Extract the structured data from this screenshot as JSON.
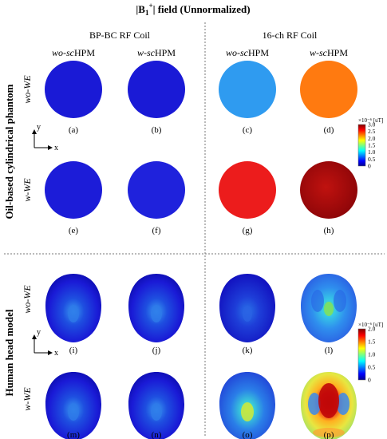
{
  "title": "|B",
  "title_sub": "1",
  "title_sup": "+",
  "title_rest": "| field (Unnormalized)",
  "columns": {
    "group_left": "BP-BC RF Coil",
    "group_right": "16-ch RF Coil",
    "left_wo": {
      "prefix": "wo-",
      "italic": "sc",
      "suffix": "HPM"
    },
    "left_w": {
      "prefix": "w-",
      "italic": "sc",
      "suffix": "HPM"
    },
    "right_wo": {
      "prefix": "wo-",
      "italic": "sc",
      "suffix": "HPM"
    },
    "right_w": {
      "prefix": "w-",
      "italic": "sc",
      "suffix": "HPM"
    }
  },
  "sections": {
    "top": "Oil-based cylindrical phantom",
    "bottom": "Human head model"
  },
  "rows": {
    "top_wo": "wo-WE",
    "top_w": "w-WE",
    "bottom_wo": "wo-WE",
    "bottom_w": "w-WE"
  },
  "axes": {
    "x": "x",
    "y": "y"
  },
  "colorbar_top": {
    "unit": "×10⁻⁶ [uT]",
    "ticks": [
      "3.0",
      "2.5",
      "2.0",
      "1.5",
      "1.0",
      "0.5",
      "0"
    ],
    "max": 3.0
  },
  "colorbar_bottom": {
    "unit": "×10⁻⁶ [uT]",
    "ticks": [
      "2.0",
      "1.5",
      "1.0",
      "0.5",
      "0"
    ],
    "max": 2.0
  },
  "panels": [
    {
      "label": "(a)",
      "shape": "circle",
      "field": 0.15
    },
    {
      "label": "(b)",
      "shape": "circle",
      "field": 0.15
    },
    {
      "label": "(c)",
      "shape": "circle",
      "field": 1.2
    },
    {
      "label": "(d)",
      "shape": "circle",
      "field": 2.5
    },
    {
      "label": "(e)",
      "shape": "circle",
      "field": 0.15
    },
    {
      "label": "(f)",
      "shape": "circle",
      "field": 0.25
    },
    {
      "label": "(g)",
      "shape": "circle",
      "field": 2.7
    },
    {
      "label": "(h)",
      "shape": "circle",
      "field": 2.8
    },
    {
      "label": "(i)",
      "shape": "head",
      "field": 0.5
    },
    {
      "label": "(j)",
      "shape": "head",
      "field": 0.5
    },
    {
      "label": "(k)",
      "shape": "head",
      "field": 0.45
    },
    {
      "label": "(l)",
      "shape": "head",
      "field": 0.9
    },
    {
      "label": "(m)",
      "shape": "head",
      "field": 0.5
    },
    {
      "label": "(n)",
      "shape": "head",
      "field": 0.5
    },
    {
      "label": "(o)",
      "shape": "head",
      "field": 0.8
    },
    {
      "label": "(p)",
      "shape": "head",
      "field": 1.6
    }
  ],
  "colors": {
    "panel_a": "#1a1ad6",
    "panel_c": "#2f9bf0",
    "panel_d": "#ff7a10",
    "panel_g": "#ec1c1c",
    "panel_h": "#b3090c",
    "divider": "#777777"
  }
}
